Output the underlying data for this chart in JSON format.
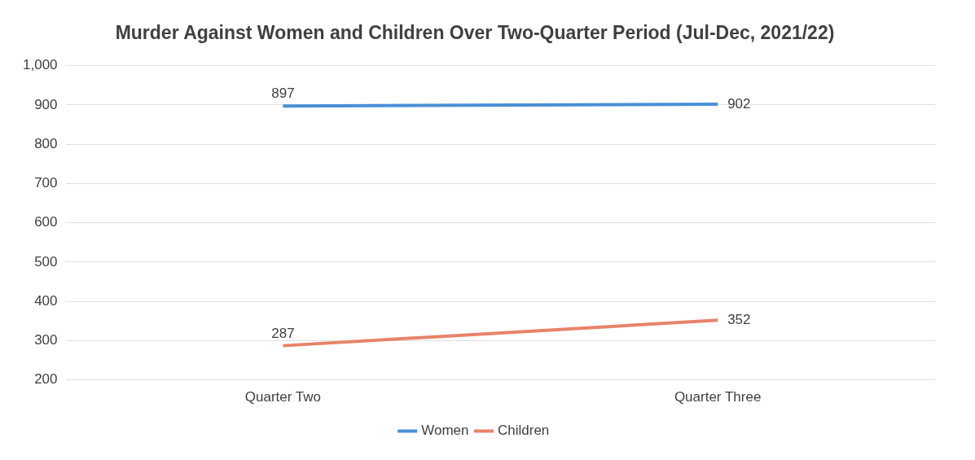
{
  "chart_data": {
    "type": "line",
    "title": "Murder Against Women and Children Over Two-Quarter Period (Jul-Dec, 2021/22)",
    "categories": [
      "Quarter Two",
      "Quarter Three"
    ],
    "series": [
      {
        "name": "Women",
        "color": "#4a8fd6",
        "values": [
          897,
          902
        ]
      },
      {
        "name": "Children",
        "color": "#e8836a",
        "values": [
          287,
          352
        ]
      }
    ],
    "ylim": [
      200,
      1000
    ],
    "yticks": [
      200,
      300,
      400,
      500,
      600,
      700,
      800,
      900,
      {
        "value": 1000,
        "label": "1,000"
      }
    ],
    "grid": "y",
    "legend": "bottom",
    "data_labels": true,
    "marker": "none",
    "line_style": "solid"
  }
}
